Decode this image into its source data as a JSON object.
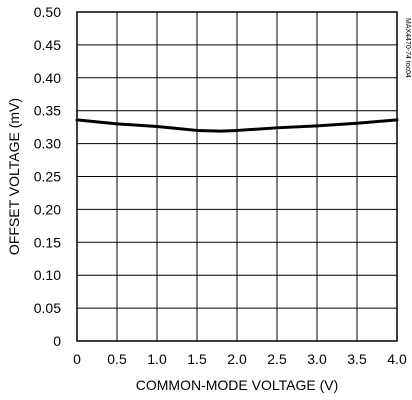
{
  "chart_data": {
    "type": "line",
    "xlabel": "COMMON-MODE VOLTAGE (V)",
    "ylabel": "OFFSET VOLTAGE (mV)",
    "xlim": [
      0,
      4.0
    ],
    "ylim": [
      0,
      0.5
    ],
    "x_ticks": [
      "0",
      "0.5",
      "1.0",
      "1.5",
      "2.0",
      "2.5",
      "3.0",
      "3.5",
      "4.0"
    ],
    "y_ticks": [
      "0",
      "0.05",
      "0.10",
      "0.15",
      "0.20",
      "0.25",
      "0.30",
      "0.35",
      "0.40",
      "0.45",
      "0.50"
    ],
    "grid": true,
    "annotation": "MAX4470-74 toc04",
    "series": [
      {
        "line_color": "#000000",
        "x": [
          0,
          0.5,
          1.0,
          1.5,
          1.8,
          2.0,
          2.5,
          3.0,
          3.5,
          4.0
        ],
        "y": [
          0.336,
          0.33,
          0.326,
          0.32,
          0.319,
          0.32,
          0.324,
          0.327,
          0.331,
          0.336
        ]
      }
    ]
  }
}
